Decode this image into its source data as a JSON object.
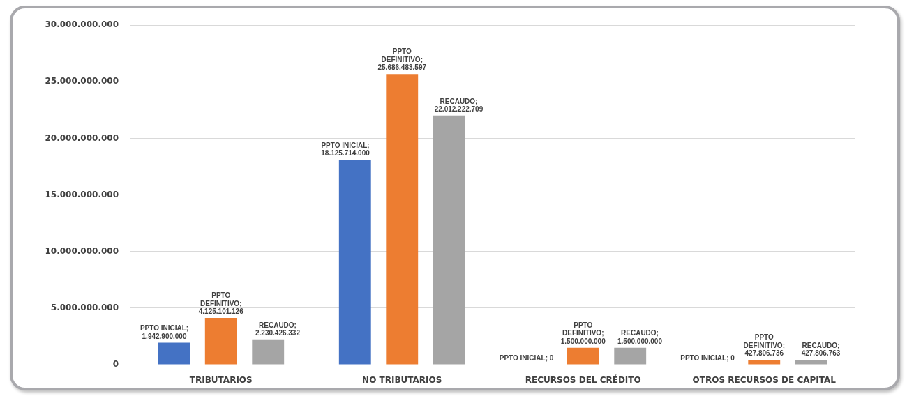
{
  "chart_data": {
    "type": "bar",
    "categories": [
      "TRIBUTARIOS",
      "NO TRIBUTARIOS",
      "RECURSOS DEL CRÉDITO",
      "OTROS RECURSOS DE CAPITAL"
    ],
    "series": [
      {
        "name": "PPTO INICIAL;",
        "color": "#4472c4",
        "values": [
          1942900000,
          18125714000,
          0,
          0
        ],
        "value_labels": [
          "1.942.900.000",
          "18.125.714.000",
          "0",
          "0"
        ]
      },
      {
        "name": "PPTO DEFINITIVO;",
        "color": "#ed7d31",
        "values": [
          4125101126,
          25686483597,
          1500000000,
          427806736
        ],
        "value_labels": [
          "4.125.101.126",
          "25.686.483.597",
          "1.500.000.000",
          "427.806.736"
        ]
      },
      {
        "name": "RECAUDO;",
        "color": "#a5a5a5",
        "values": [
          2230426332,
          22012222709,
          1500000000,
          427806763
        ],
        "value_labels": [
          "2.230.426.332",
          "22.012.222.709",
          "1.500.000.000",
          "427.806.763"
        ]
      }
    ],
    "ylim": [
      0,
      30000000000
    ],
    "yticks": [
      0,
      {
        "value": 5000000000,
        "label": "5.000.000.000"
      },
      {
        "value": 10000000000,
        "label": "10.000.000.000"
      },
      {
        "value": 15000000000,
        "label": "15.000.000.000"
      },
      {
        "value": 20000000000,
        "label": "20.000.000.000"
      },
      {
        "value": 25000000000,
        "label": "25.000.000.000"
      },
      {
        "value": 30000000000,
        "label": "30.000.000.000"
      }
    ],
    "grid": "y",
    "legend": false
  }
}
